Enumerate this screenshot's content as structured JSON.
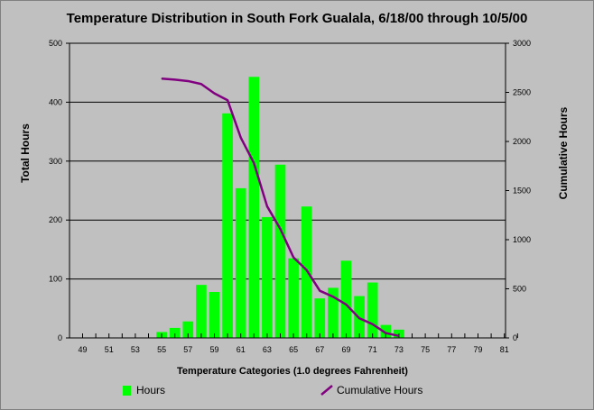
{
  "colors": {
    "background": "#c0c0c0",
    "bars": "#00ff00",
    "line": "#800080",
    "grid": "#000000"
  },
  "chart_data": {
    "type": "bar",
    "title": "Temperature Distribution in South Fork Gualala, 6/18/00 through 10/5/00",
    "xlabel": "Temperature Categories (1.0 degrees Fahrenheit)",
    "ylabel": "Total Hours",
    "y2label": "Cumulative Hours",
    "ylim": [
      0,
      500
    ],
    "y2lim": [
      0,
      3000
    ],
    "yticks": [
      "0",
      "100",
      "200",
      "300",
      "400",
      "500"
    ],
    "y2ticks": [
      "0",
      "500",
      "1000",
      "1500",
      "2000",
      "2500",
      "3000"
    ],
    "xticks": [
      "49",
      "51",
      "53",
      "55",
      "57",
      "59",
      "61",
      "63",
      "65",
      "67",
      "69",
      "71",
      "73",
      "75",
      "77",
      "79",
      "81"
    ],
    "grid": true,
    "legend_placement": "bottom",
    "categories": [
      49,
      50,
      51,
      52,
      53,
      54,
      55,
      56,
      57,
      58,
      59,
      60,
      61,
      62,
      63,
      64,
      65,
      66,
      67,
      68,
      69,
      70,
      71,
      72,
      73,
      74,
      75,
      76,
      77,
      78,
      79,
      80,
      81,
      82
    ],
    "series": [
      {
        "name": "Hours",
        "type": "bar",
        "axis": "left",
        "values": [
          0,
          0,
          0,
          0,
          0,
          0,
          10,
          17,
          28,
          90,
          78,
          381,
          254,
          443,
          205,
          294,
          135,
          223,
          67,
          85,
          131,
          71,
          94,
          22,
          14,
          0,
          0,
          0,
          0,
          0,
          0,
          0,
          0,
          0
        ]
      },
      {
        "name": "Cumulative Hours",
        "type": "line",
        "axis": "right",
        "points": [
          [
            55,
            2640
          ],
          [
            56,
            2630
          ],
          [
            57,
            2615
          ],
          [
            58,
            2585
          ],
          [
            59,
            2490
          ],
          [
            60,
            2420
          ],
          [
            61,
            2040
          ],
          [
            62,
            1780
          ],
          [
            63,
            1340
          ],
          [
            64,
            1110
          ],
          [
            65,
            820
          ],
          [
            66,
            690
          ],
          [
            67,
            480
          ],
          [
            68,
            420
          ],
          [
            69,
            340
          ],
          [
            70,
            200
          ],
          [
            71,
            140
          ],
          [
            72,
            50
          ],
          [
            73,
            20
          ]
        ]
      }
    ]
  }
}
